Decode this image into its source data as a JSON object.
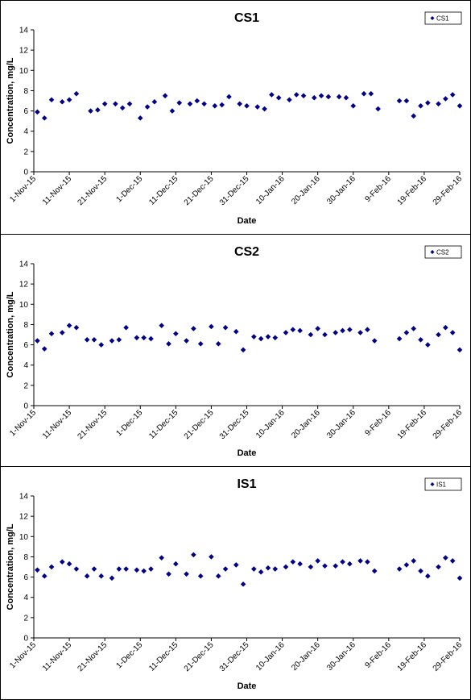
{
  "chart_data": [
    {
      "type": "scatter",
      "title": "CS1",
      "xlabel": "Date",
      "ylabel": "Concentration, mg/L",
      "ylim": [
        0,
        14
      ],
      "yticks": [
        "0",
        "2",
        "4",
        "6",
        "8",
        "10",
        "12",
        "14"
      ],
      "xlim": [
        "1-Nov-15",
        "29-Feb-16"
      ],
      "xticks": [
        "1-Nov-15",
        "11-Nov-15",
        "21-Nov-15",
        "1-Dec-15",
        "11-Dec-15",
        "21-Dec-15",
        "31-Dec-15",
        "10-Jan-16",
        "20-Jan-16",
        "30-Jan-16",
        "9-Feb-16",
        "19-Feb-16",
        "29-Feb-16"
      ],
      "legend": "top-right",
      "grid": false,
      "marker_color": "#00008B",
      "series": [
        {
          "name": "CS1",
          "points": [
            {
              "x": "2015-11-02",
              "y": 5.9
            },
            {
              "x": "2015-11-04",
              "y": 5.3
            },
            {
              "x": "2015-11-06",
              "y": 7.1
            },
            {
              "x": "2015-11-09",
              "y": 6.9
            },
            {
              "x": "2015-11-11",
              "y": 7.1
            },
            {
              "x": "2015-11-13",
              "y": 7.7
            },
            {
              "x": "2015-11-17",
              "y": 6.0
            },
            {
              "x": "2015-11-19",
              "y": 6.1
            },
            {
              "x": "2015-11-21",
              "y": 6.7
            },
            {
              "x": "2015-11-24",
              "y": 6.7
            },
            {
              "x": "2015-11-26",
              "y": 6.3
            },
            {
              "x": "2015-11-28",
              "y": 6.7
            },
            {
              "x": "2015-12-01",
              "y": 5.3
            },
            {
              "x": "2015-12-03",
              "y": 6.4
            },
            {
              "x": "2015-12-05",
              "y": 6.9
            },
            {
              "x": "2015-12-08",
              "y": 7.5
            },
            {
              "x": "2015-12-10",
              "y": 6.0
            },
            {
              "x": "2015-12-12",
              "y": 6.8
            },
            {
              "x": "2015-12-15",
              "y": 6.7
            },
            {
              "x": "2015-12-17",
              "y": 7.0
            },
            {
              "x": "2015-12-19",
              "y": 6.7
            },
            {
              "x": "2015-12-22",
              "y": 6.5
            },
            {
              "x": "2015-12-24",
              "y": 6.6
            },
            {
              "x": "2015-12-26",
              "y": 7.4
            },
            {
              "x": "2015-12-29",
              "y": 6.7
            },
            {
              "x": "2015-12-31",
              "y": 6.5
            },
            {
              "x": "2016-01-03",
              "y": 6.4
            },
            {
              "x": "2016-01-05",
              "y": 6.2
            },
            {
              "x": "2016-01-07",
              "y": 7.6
            },
            {
              "x": "2016-01-09",
              "y": 7.3
            },
            {
              "x": "2016-01-12",
              "y": 7.1
            },
            {
              "x": "2016-01-14",
              "y": 7.6
            },
            {
              "x": "2016-01-16",
              "y": 7.5
            },
            {
              "x": "2016-01-19",
              "y": 7.3
            },
            {
              "x": "2016-01-21",
              "y": 7.5
            },
            {
              "x": "2016-01-23",
              "y": 7.4
            },
            {
              "x": "2016-01-26",
              "y": 7.4
            },
            {
              "x": "2016-01-28",
              "y": 7.3
            },
            {
              "x": "2016-01-30",
              "y": 6.5
            },
            {
              "x": "2016-02-02",
              "y": 7.7
            },
            {
              "x": "2016-02-04",
              "y": 7.7
            },
            {
              "x": "2016-02-06",
              "y": 6.2
            },
            {
              "x": "2016-02-12",
              "y": 7.0
            },
            {
              "x": "2016-02-14",
              "y": 7.0
            },
            {
              "x": "2016-02-16",
              "y": 5.5
            },
            {
              "x": "2016-02-18",
              "y": 6.5
            },
            {
              "x": "2016-02-20",
              "y": 6.8
            },
            {
              "x": "2016-02-23",
              "y": 6.7
            },
            {
              "x": "2016-02-25",
              "y": 7.2
            },
            {
              "x": "2016-02-27",
              "y": 7.6
            },
            {
              "x": "2016-02-29",
              "y": 6.5
            }
          ]
        }
      ]
    },
    {
      "type": "scatter",
      "title": "CS2",
      "xlabel": "Date",
      "ylabel": "Concentration, mg/L",
      "ylim": [
        0,
        14
      ],
      "yticks": [
        "0",
        "2",
        "4",
        "6",
        "8",
        "10",
        "12",
        "14"
      ],
      "xlim": [
        "1-Nov-15",
        "29-Feb-16"
      ],
      "xticks": [
        "1-Nov-15",
        "11-Nov-15",
        "21-Nov-15",
        "1-Dec-15",
        "11-Dec-15",
        "21-Dec-15",
        "31-Dec-15",
        "10-Jan-16",
        "20-Jan-16",
        "30-Jan-16",
        "9-Feb-16",
        "19-Feb-16",
        "29-Feb-16"
      ],
      "legend": "top-right",
      "grid": false,
      "marker_color": "#00008B",
      "series": [
        {
          "name": "CS2",
          "points": [
            {
              "x": "2015-11-02",
              "y": 6.4
            },
            {
              "x": "2015-11-04",
              "y": 5.6
            },
            {
              "x": "2015-11-06",
              "y": 7.1
            },
            {
              "x": "2015-11-09",
              "y": 7.2
            },
            {
              "x": "2015-11-11",
              "y": 7.9
            },
            {
              "x": "2015-11-13",
              "y": 7.7
            },
            {
              "x": "2015-11-16",
              "y": 6.5
            },
            {
              "x": "2015-11-18",
              "y": 6.5
            },
            {
              "x": "2015-11-20",
              "y": 6.0
            },
            {
              "x": "2015-11-23",
              "y": 6.4
            },
            {
              "x": "2015-11-25",
              "y": 6.5
            },
            {
              "x": "2015-11-27",
              "y": 7.7
            },
            {
              "x": "2015-11-30",
              "y": 6.7
            },
            {
              "x": "2015-12-02",
              "y": 6.7
            },
            {
              "x": "2015-12-04",
              "y": 6.6
            },
            {
              "x": "2015-12-07",
              "y": 7.9
            },
            {
              "x": "2015-12-09",
              "y": 6.1
            },
            {
              "x": "2015-12-11",
              "y": 7.1
            },
            {
              "x": "2015-12-14",
              "y": 6.4
            },
            {
              "x": "2015-12-16",
              "y": 7.6
            },
            {
              "x": "2015-12-18",
              "y": 6.1
            },
            {
              "x": "2015-12-21",
              "y": 7.8
            },
            {
              "x": "2015-12-23",
              "y": 6.1
            },
            {
              "x": "2015-12-25",
              "y": 7.7
            },
            {
              "x": "2015-12-28",
              "y": 7.3
            },
            {
              "x": "2015-12-30",
              "y": 5.5
            },
            {
              "x": "2016-01-02",
              "y": 6.8
            },
            {
              "x": "2016-01-04",
              "y": 6.6
            },
            {
              "x": "2016-01-06",
              "y": 6.8
            },
            {
              "x": "2016-01-08",
              "y": 6.7
            },
            {
              "x": "2016-01-11",
              "y": 7.2
            },
            {
              "x": "2016-01-13",
              "y": 7.5
            },
            {
              "x": "2016-01-15",
              "y": 7.4
            },
            {
              "x": "2016-01-18",
              "y": 7.0
            },
            {
              "x": "2016-01-20",
              "y": 7.6
            },
            {
              "x": "2016-01-22",
              "y": 7.0
            },
            {
              "x": "2016-01-25",
              "y": 7.2
            },
            {
              "x": "2016-01-27",
              "y": 7.4
            },
            {
              "x": "2016-01-29",
              "y": 7.5
            },
            {
              "x": "2016-02-01",
              "y": 7.2
            },
            {
              "x": "2016-02-03",
              "y": 7.5
            },
            {
              "x": "2016-02-05",
              "y": 6.4
            },
            {
              "x": "2016-02-12",
              "y": 6.6
            },
            {
              "x": "2016-02-14",
              "y": 7.2
            },
            {
              "x": "2016-02-16",
              "y": 7.6
            },
            {
              "x": "2016-02-18",
              "y": 6.5
            },
            {
              "x": "2016-02-20",
              "y": 6.0
            },
            {
              "x": "2016-02-23",
              "y": 7.0
            },
            {
              "x": "2016-02-25",
              "y": 7.7
            },
            {
              "x": "2016-02-27",
              "y": 7.2
            },
            {
              "x": "2016-02-29",
              "y": 5.5
            }
          ]
        }
      ]
    },
    {
      "type": "scatter",
      "title": "IS1",
      "xlabel": "Date",
      "ylabel": "Concentration, mg/L",
      "ylim": [
        0,
        14
      ],
      "yticks": [
        "0",
        "2",
        "4",
        "6",
        "8",
        "10",
        "12",
        "14"
      ],
      "xlim": [
        "1-Nov-15",
        "29-Feb-16"
      ],
      "xticks": [
        "1-Nov-15",
        "11-Nov-15",
        "21-Nov-15",
        "1-Dec-15",
        "11-Dec-15",
        "21-Dec-15",
        "31-Dec-15",
        "10-Jan-16",
        "20-Jan-16",
        "30-Jan-16",
        "9-Feb-16",
        "19-Feb-16",
        "29-Feb-16"
      ],
      "legend": "top-right",
      "grid": false,
      "marker_color": "#00008B",
      "series": [
        {
          "name": "IS1",
          "points": [
            {
              "x": "2015-11-02",
              "y": 6.7
            },
            {
              "x": "2015-11-04",
              "y": 6.1
            },
            {
              "x": "2015-11-06",
              "y": 7.0
            },
            {
              "x": "2015-11-09",
              "y": 7.5
            },
            {
              "x": "2015-11-11",
              "y": 7.3
            },
            {
              "x": "2015-11-13",
              "y": 6.8
            },
            {
              "x": "2015-11-16",
              "y": 6.1
            },
            {
              "x": "2015-11-18",
              "y": 6.8
            },
            {
              "x": "2015-11-20",
              "y": 6.1
            },
            {
              "x": "2015-11-23",
              "y": 5.9
            },
            {
              "x": "2015-11-25",
              "y": 6.8
            },
            {
              "x": "2015-11-27",
              "y": 6.8
            },
            {
              "x": "2015-11-30",
              "y": 6.7
            },
            {
              "x": "2015-12-02",
              "y": 6.6
            },
            {
              "x": "2015-12-04",
              "y": 6.8
            },
            {
              "x": "2015-12-07",
              "y": 7.9
            },
            {
              "x": "2015-12-09",
              "y": 6.3
            },
            {
              "x": "2015-12-11",
              "y": 7.3
            },
            {
              "x": "2015-12-14",
              "y": 6.3
            },
            {
              "x": "2015-12-16",
              "y": 8.2
            },
            {
              "x": "2015-12-18",
              "y": 6.1
            },
            {
              "x": "2015-12-21",
              "y": 8.0
            },
            {
              "x": "2015-12-23",
              "y": 6.1
            },
            {
              "x": "2015-12-25",
              "y": 6.8
            },
            {
              "x": "2015-12-28",
              "y": 7.2
            },
            {
              "x": "2015-12-30",
              "y": 5.3
            },
            {
              "x": "2016-01-02",
              "y": 6.8
            },
            {
              "x": "2016-01-04",
              "y": 6.5
            },
            {
              "x": "2016-01-06",
              "y": 6.9
            },
            {
              "x": "2016-01-08",
              "y": 6.8
            },
            {
              "x": "2016-01-11",
              "y": 7.0
            },
            {
              "x": "2016-01-13",
              "y": 7.5
            },
            {
              "x": "2016-01-15",
              "y": 7.3
            },
            {
              "x": "2016-01-18",
              "y": 7.0
            },
            {
              "x": "2016-01-20",
              "y": 7.6
            },
            {
              "x": "2016-01-22",
              "y": 7.1
            },
            {
              "x": "2016-01-25",
              "y": 7.1
            },
            {
              "x": "2016-01-27",
              "y": 7.5
            },
            {
              "x": "2016-01-29",
              "y": 7.3
            },
            {
              "x": "2016-02-01",
              "y": 7.6
            },
            {
              "x": "2016-02-03",
              "y": 7.5
            },
            {
              "x": "2016-02-05",
              "y": 6.6
            },
            {
              "x": "2016-02-12",
              "y": 6.8
            },
            {
              "x": "2016-02-14",
              "y": 7.2
            },
            {
              "x": "2016-02-16",
              "y": 7.6
            },
            {
              "x": "2016-02-18",
              "y": 6.6
            },
            {
              "x": "2016-02-20",
              "y": 6.1
            },
            {
              "x": "2016-02-23",
              "y": 7.0
            },
            {
              "x": "2016-02-25",
              "y": 7.9
            },
            {
              "x": "2016-02-27",
              "y": 7.6
            },
            {
              "x": "2016-02-29",
              "y": 5.9
            }
          ]
        }
      ]
    }
  ]
}
